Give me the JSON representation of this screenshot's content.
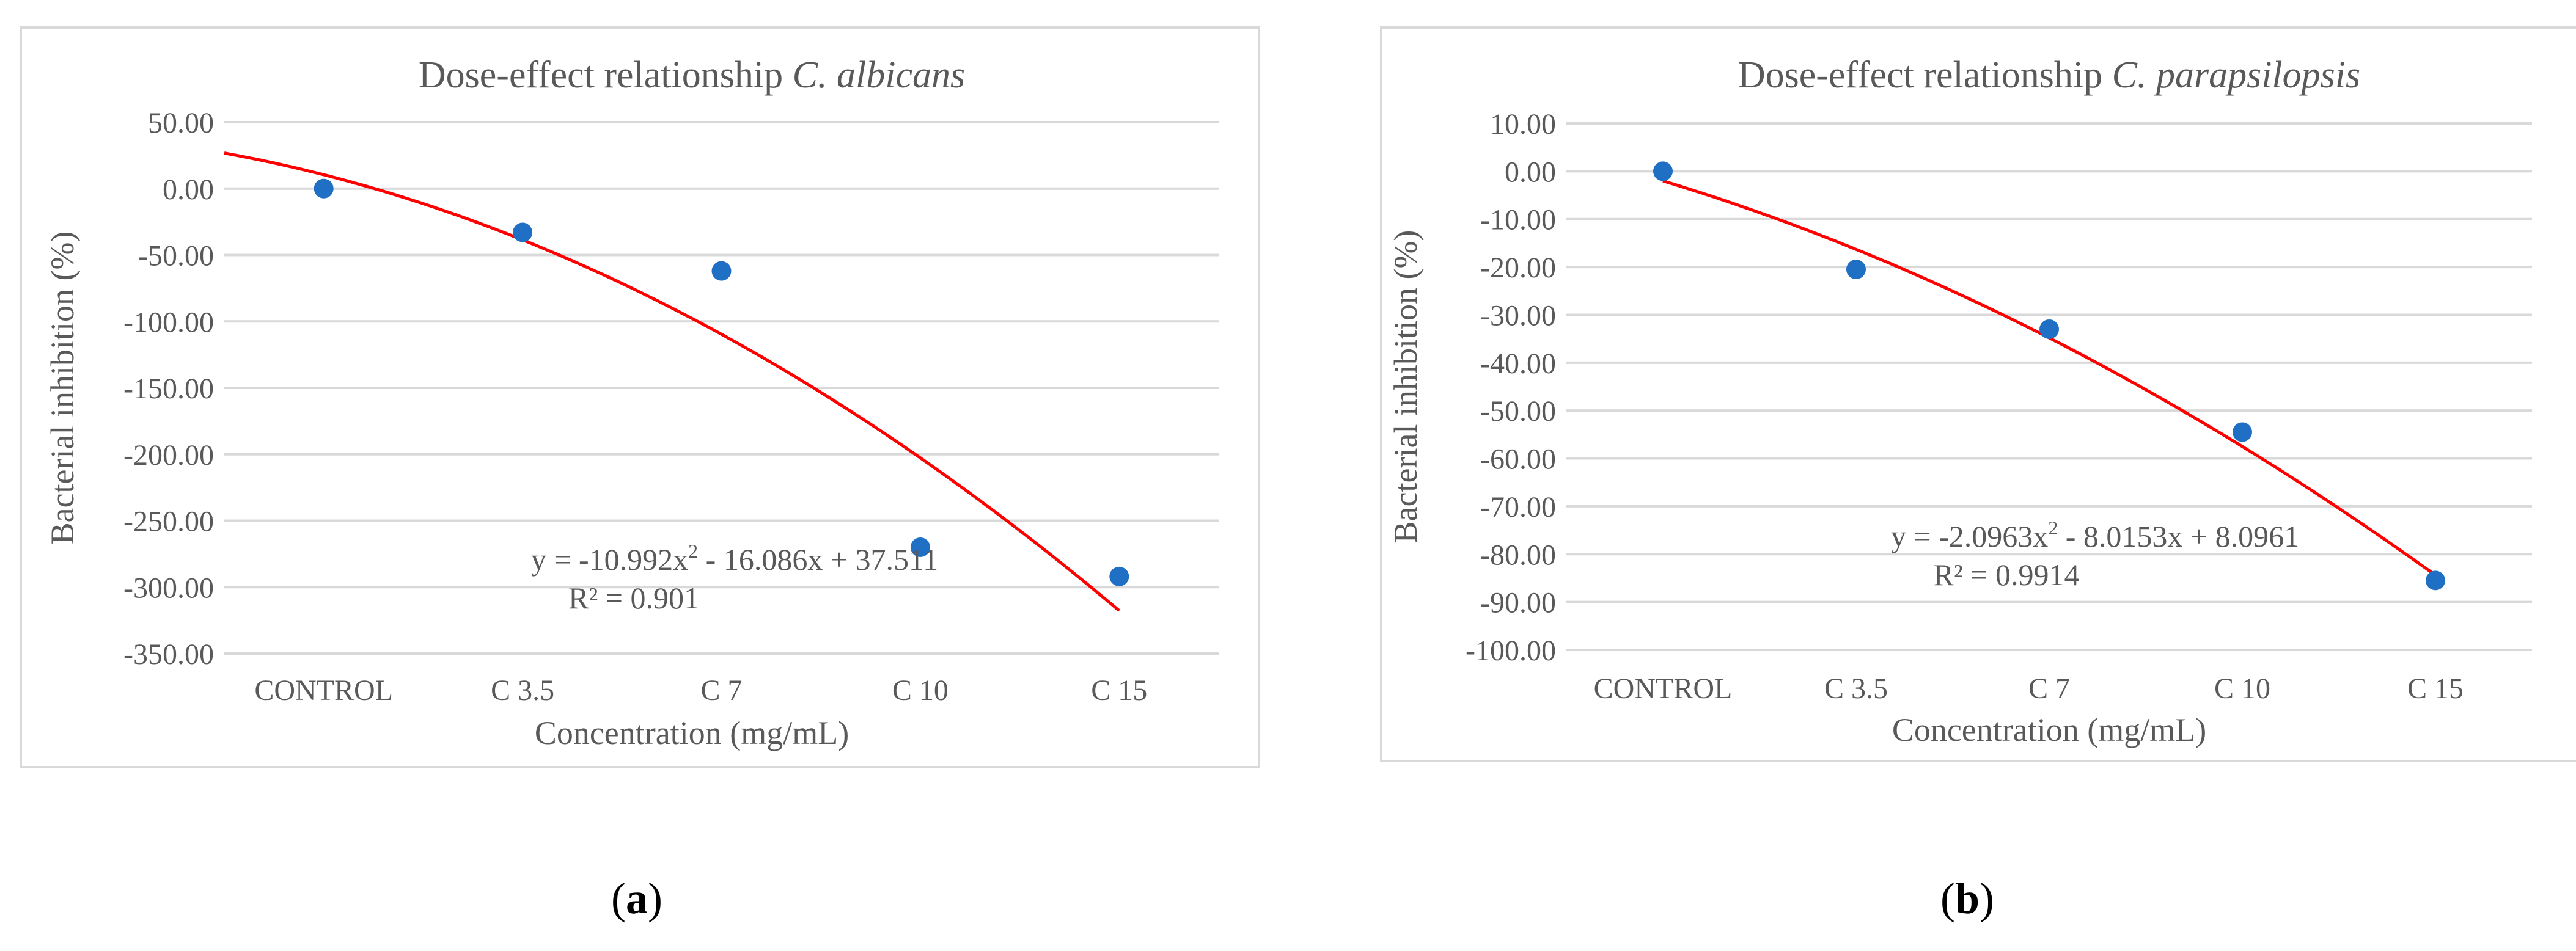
{
  "colors": {
    "points": "#1f6fc5",
    "trend": "#ff0000",
    "grid": "#d9d9d9",
    "text": "#595959",
    "frame": "#d9d9d9"
  },
  "chart_data": [
    {
      "id": "a",
      "type": "scatter",
      "title_prefix": "Dose-effect relationship",
      "title_species": "C. albicans",
      "xlabel": "Concentration (mg/mL)",
      "ylabel": "Bacterial inhibition (%)",
      "categories": [
        "CONTROL",
        "C 3.5",
        "C 7",
        "C 10",
        "C 15"
      ],
      "values": [
        0.0,
        -33.0,
        -62.0,
        -270.0,
        -292.0
      ],
      "ylim": [
        -350,
        50
      ],
      "ystep": 50,
      "ytick_labels": [
        "50.00",
        "0.00",
        "-50.00",
        "-100.00",
        "-150.00",
        "-200.00",
        "-250.00",
        "-300.00",
        "-350.00"
      ],
      "trendline": {
        "type": "polynomial",
        "coefficients": [
          -10.992,
          -16.086,
          37.511
        ],
        "x_range": [
          0.5,
          5
        ]
      },
      "equation_text": "y = -10.992x",
      "equation_sup": "2",
      "equation_rest": " - 16.086x + 37.511",
      "r2_text": "R² = 0.901",
      "caption_label": "a"
    },
    {
      "id": "b",
      "type": "scatter",
      "title_prefix": "Dose-effect relationship",
      "title_species": "C. parapsilopsis",
      "xlabel": "Concentration (mg/mL)",
      "ylabel": "Bacterial inhibition (%)",
      "categories": [
        "CONTROL",
        "C 3.5",
        "C 7",
        "C 10",
        "C 15"
      ],
      "values": [
        0.0,
        -20.5,
        -33.0,
        -54.5,
        -85.5
      ],
      "ylim": [
        -100,
        10
      ],
      "ystep": 10,
      "ytick_labels": [
        "10.00",
        "0.00",
        "-10.00",
        "-20.00",
        "-30.00",
        "-40.00",
        "-50.00",
        "-60.00",
        "-70.00",
        "-80.00",
        "-90.00",
        "-100.00"
      ],
      "trendline": {
        "type": "polynomial",
        "coefficients": [
          -2.0963,
          -8.0153,
          8.0961
        ],
        "x_range": [
          1,
          5
        ]
      },
      "equation_text": "y = -2.0963x",
      "equation_sup": "2",
      "equation_rest": " - 8.0153x + 8.0961",
      "r2_text": "R² = 0.9914",
      "caption_label": "b"
    }
  ]
}
